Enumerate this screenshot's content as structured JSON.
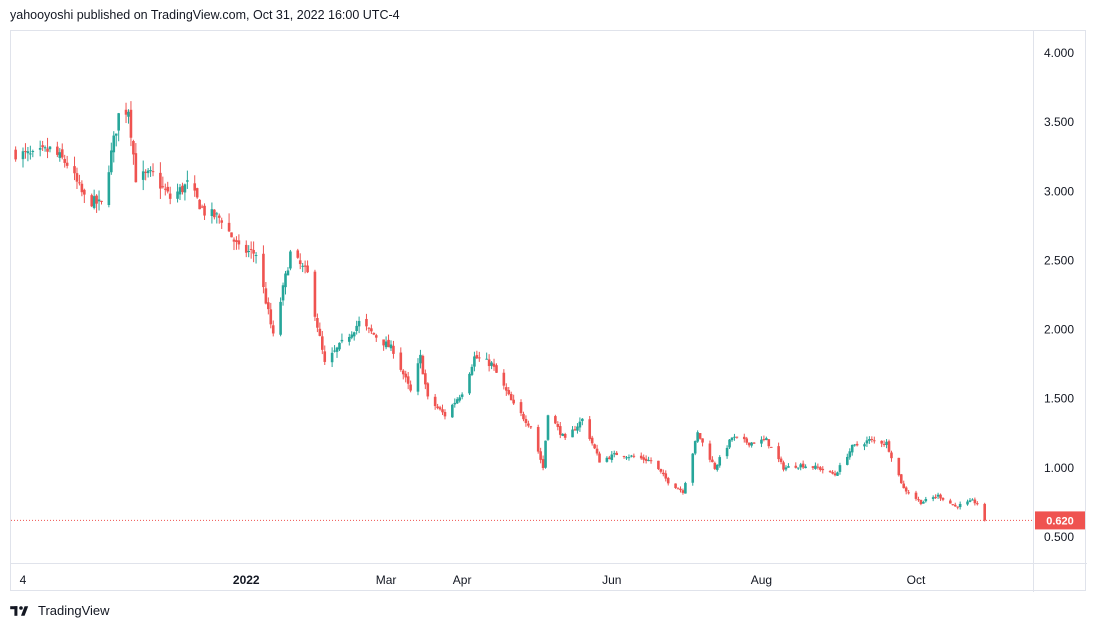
{
  "header": {
    "text": "yahooyoshi published on TradingView.com, Oct 31, 2022 16:00 UTC-4"
  },
  "footer": {
    "brand": "TradingView"
  },
  "colors": {
    "up": "#26a69a",
    "down": "#ef5350",
    "grid": "#e0e3eb",
    "price_line": "#ef5350"
  },
  "chart_data": {
    "type": "candlestick",
    "title": "",
    "xlabel": "",
    "ylabel": "",
    "ylim": [
      0.25,
      4.2
    ],
    "y_ticks": [
      0.5,
      1.0,
      1.5,
      2.0,
      2.5,
      3.0,
      3.5,
      4.0
    ],
    "y_tick_labels": [
      "0.500",
      "1.000",
      "1.500",
      "2.000",
      "2.500",
      "3.000",
      "3.500",
      "4.000"
    ],
    "x_ticks": [
      {
        "label": "4",
        "bold": false,
        "date": "2021-10-04"
      },
      {
        "label": "2022",
        "bold": true,
        "date": "2022-01-03"
      },
      {
        "label": "Mar",
        "bold": false,
        "date": "2022-03-01"
      },
      {
        "label": "Apr",
        "bold": false,
        "date": "2022-04-01"
      },
      {
        "label": "Jun",
        "bold": false,
        "date": "2022-06-01"
      },
      {
        "label": "Aug",
        "bold": false,
        "date": "2022-08-01"
      },
      {
        "label": "Oct",
        "bold": false,
        "date": "2022-10-03"
      }
    ],
    "last_price": 0.62,
    "last_price_label": "0.620",
    "anchors": [
      [
        "2021-10-01",
        3.28
      ],
      [
        "2021-10-08",
        3.25
      ],
      [
        "2021-10-15",
        3.3
      ],
      [
        "2021-10-22",
        3.2
      ],
      [
        "2021-10-29",
        2.95
      ],
      [
        "2021-11-05",
        2.9
      ],
      [
        "2021-11-12",
        3.55
      ],
      [
        "2021-11-16",
        3.6
      ],
      [
        "2021-11-19",
        3.1
      ],
      [
        "2021-11-26",
        3.12
      ],
      [
        "2021-12-03",
        2.95
      ],
      [
        "2021-12-10",
        3.05
      ],
      [
        "2021-12-17",
        2.85
      ],
      [
        "2021-12-24",
        2.8
      ],
      [
        "2021-12-31",
        2.58
      ],
      [
        "2022-01-07",
        2.55
      ],
      [
        "2022-01-14",
        1.95
      ],
      [
        "2022-01-21",
        2.55
      ],
      [
        "2022-01-28",
        2.4
      ],
      [
        "2022-02-04",
        1.75
      ],
      [
        "2022-02-11",
        1.9
      ],
      [
        "2022-02-18",
        2.05
      ],
      [
        "2022-02-25",
        1.95
      ],
      [
        "2022-03-04",
        1.85
      ],
      [
        "2022-03-11",
        1.55
      ],
      [
        "2022-03-15",
        1.8
      ],
      [
        "2022-03-18",
        1.5
      ],
      [
        "2022-03-25",
        1.38
      ],
      [
        "2022-04-01",
        1.55
      ],
      [
        "2022-04-06",
        1.8
      ],
      [
        "2022-04-13",
        1.75
      ],
      [
        "2022-04-22",
        1.45
      ],
      [
        "2022-04-29",
        1.3
      ],
      [
        "2022-05-04",
        1.0
      ],
      [
        "2022-05-06",
        1.4
      ],
      [
        "2022-05-13",
        1.2
      ],
      [
        "2022-05-20",
        1.35
      ],
      [
        "2022-05-27",
        1.05
      ],
      [
        "2022-06-03",
        1.1
      ],
      [
        "2022-06-10",
        1.08
      ],
      [
        "2022-06-17",
        1.05
      ],
      [
        "2022-06-24",
        0.9
      ],
      [
        "2022-06-30",
        0.83
      ],
      [
        "2022-07-06",
        1.25
      ],
      [
        "2022-07-13",
        1.0
      ],
      [
        "2022-07-20",
        1.22
      ],
      [
        "2022-07-27",
        1.18
      ],
      [
        "2022-08-03",
        1.2
      ],
      [
        "2022-08-10",
        1.0
      ],
      [
        "2022-08-17",
        1.02
      ],
      [
        "2022-08-24",
        1.0
      ],
      [
        "2022-08-31",
        0.95
      ],
      [
        "2022-09-07",
        1.15
      ],
      [
        "2022-09-14",
        1.2
      ],
      [
        "2022-09-21",
        1.18
      ],
      [
        "2022-09-28",
        0.85
      ],
      [
        "2022-10-05",
        0.75
      ],
      [
        "2022-10-12",
        0.8
      ],
      [
        "2022-10-19",
        0.72
      ],
      [
        "2022-10-26",
        0.76
      ],
      [
        "2022-10-28",
        0.74
      ],
      [
        "2022-10-31",
        0.62
      ]
    ]
  }
}
